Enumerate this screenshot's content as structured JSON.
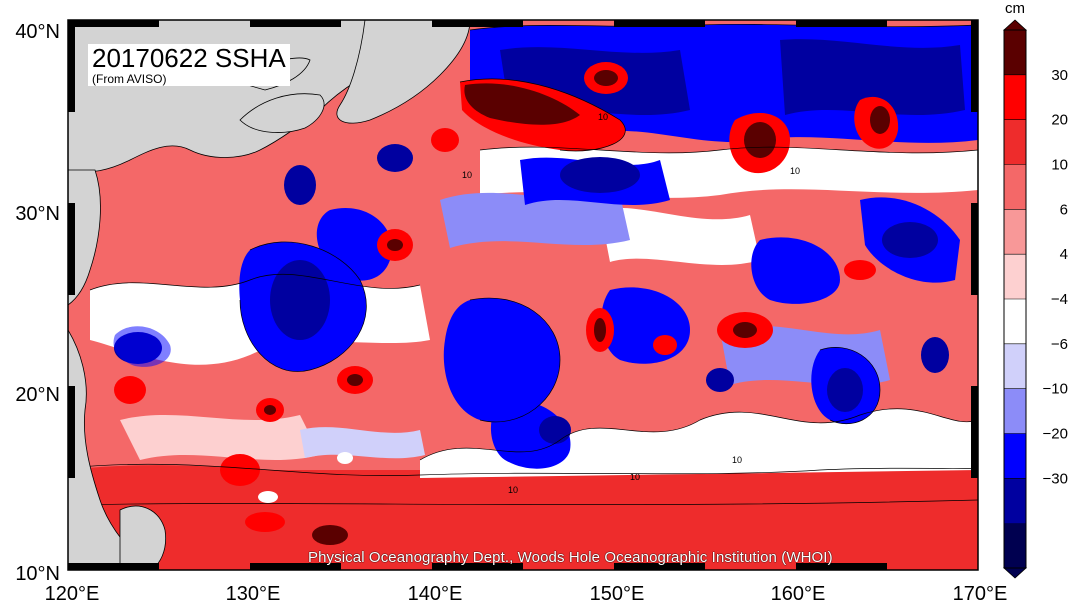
{
  "map": {
    "title": "20170622 SSHA",
    "subtitle": "(From AVISO)",
    "credit": "Physical Oceanography Dept., Woods Hole Oceanographic Institution (WHOI)",
    "lon_labels": [
      "120°E",
      "130°E",
      "140°E",
      "150°E",
      "160°E",
      "170°E"
    ],
    "lat_labels": [
      "40°N",
      "30°N",
      "20°N",
      "10°N"
    ],
    "lon_range": [
      120,
      170
    ],
    "lat_range": [
      10,
      40
    ],
    "land_color": "#d3d3d3"
  },
  "colorbar": {
    "unit": "cm",
    "tick_labels": [
      "30",
      "20",
      "10",
      "6",
      "4",
      "−4",
      "−6",
      "−10",
      "−20",
      "−30"
    ],
    "colors": [
      "#5a0000",
      "#ff0000",
      "#ee2c2c",
      "#f46868",
      "#f89898",
      "#fdd0d0",
      "#ffffff",
      "#d0d0fa",
      "#8c8cf8",
      "#0000ff",
      "#0000a0",
      "#000050"
    ]
  },
  "contour_labels": [
    "10",
    "10",
    "10",
    "10",
    "10",
    "10"
  ]
}
